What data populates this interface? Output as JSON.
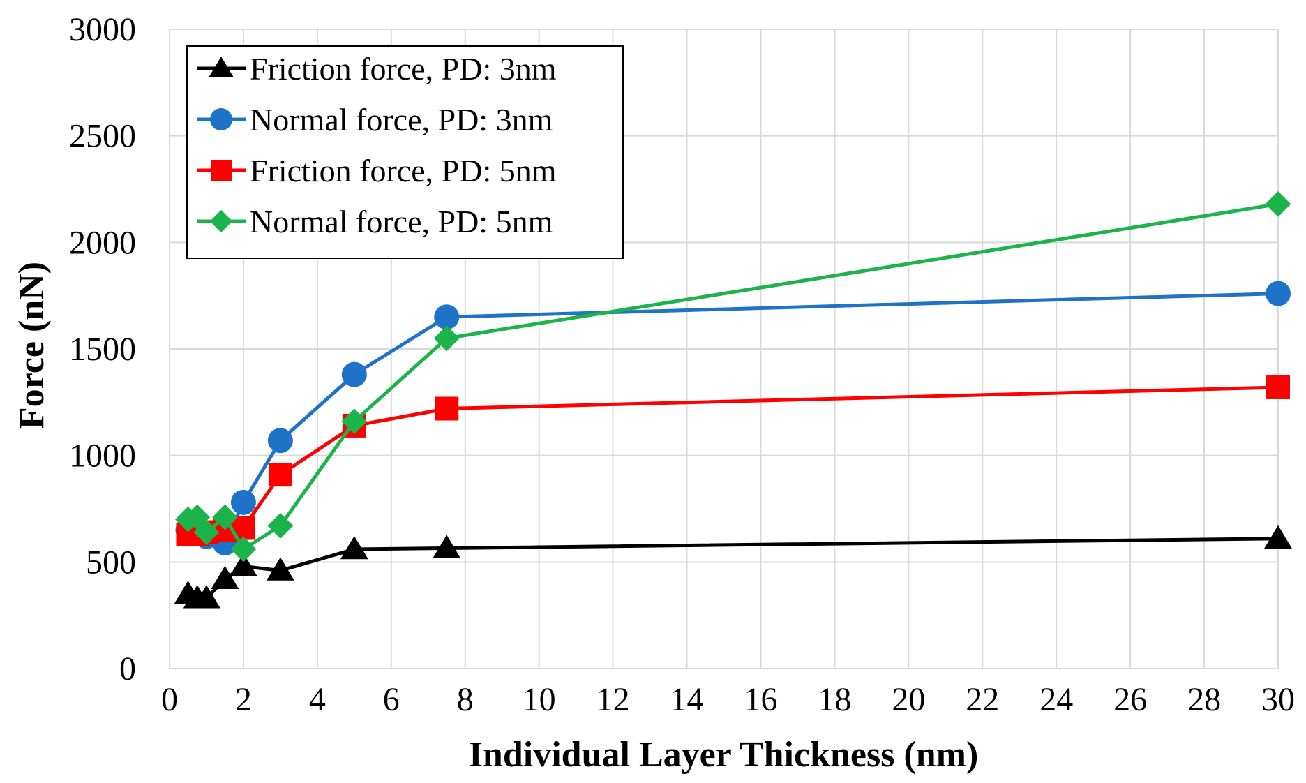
{
  "chart_data": {
    "type": "line",
    "title": "",
    "xlabel": "Individual Layer Thickness (nm)",
    "ylabel": "Force (nN)",
    "xlim": [
      0,
      30
    ],
    "ylim": [
      0,
      3000
    ],
    "xticks": [
      0,
      2,
      4,
      6,
      8,
      10,
      12,
      14,
      16,
      18,
      20,
      22,
      24,
      26,
      28,
      30
    ],
    "yticks": [
      0,
      500,
      1000,
      1500,
      2000,
      2500,
      3000
    ],
    "grid": true,
    "legend_position": "top-left",
    "series": [
      {
        "name": "Friction force, PD: 3nm",
        "color": "#000000",
        "marker": "triangle",
        "x": [
          0.5,
          0.75,
          1,
          1.5,
          2,
          3,
          5,
          7.5,
          30
        ],
        "y": [
          350,
          330,
          330,
          420,
          480,
          460,
          560,
          565,
          610
        ]
      },
      {
        "name": "Normal force, PD: 3nm",
        "color": "#1e73c8",
        "marker": "circle",
        "x": [
          0.5,
          0.75,
          1,
          1.5,
          2,
          3,
          5,
          7.5,
          30
        ],
        "y": [
          650,
          650,
          620,
          590,
          780,
          1070,
          1380,
          1650,
          1760
        ]
      },
      {
        "name": "Friction force, PD: 5nm",
        "color": "#ff0000",
        "marker": "square",
        "x": [
          0.5,
          0.75,
          1,
          1.5,
          2,
          3,
          5,
          7.5,
          30
        ],
        "y": [
          630,
          630,
          640,
          650,
          660,
          910,
          1140,
          1220,
          1320
        ]
      },
      {
        "name": "Normal force, PD: 5nm",
        "color": "#1cb34b",
        "marker": "diamond",
        "x": [
          0.5,
          0.75,
          1,
          1.5,
          2,
          3,
          5,
          7.5,
          30
        ],
        "y": [
          700,
          710,
          640,
          710,
          560,
          670,
          1160,
          1550,
          2180
        ]
      }
    ]
  }
}
